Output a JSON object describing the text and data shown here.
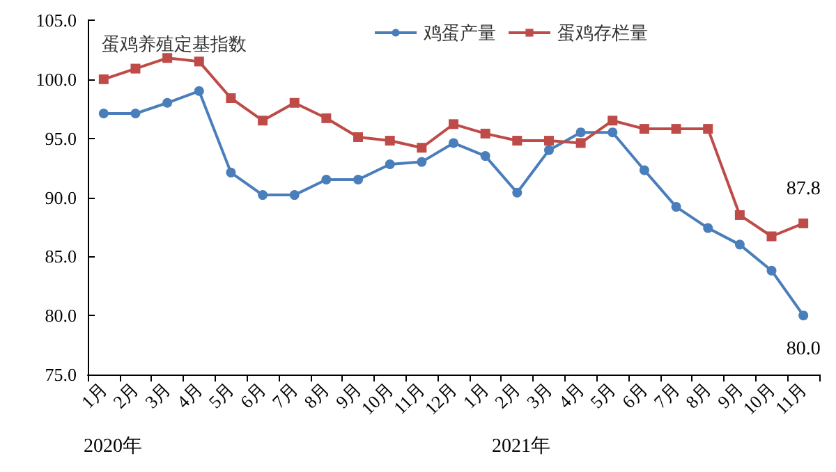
{
  "chart_data": {
    "type": "line",
    "title": "蛋鸡养殖定基指数",
    "categories": [
      "1月",
      "2月",
      "3月",
      "4月",
      "5月",
      "6月",
      "7月",
      "8月",
      "9月",
      "10月",
      "11月",
      "12月",
      "1月",
      "2月",
      "3月",
      "4月",
      "5月",
      "6月",
      "7月",
      "8月",
      "9月",
      "10月",
      "11月"
    ],
    "series": [
      {
        "name": "鸡蛋产量",
        "color": "#4a7ebb",
        "marker": "circle",
        "values": [
          97.1,
          97.1,
          98.0,
          99.0,
          92.1,
          90.2,
          90.2,
          91.5,
          91.5,
          92.8,
          93.0,
          94.6,
          93.5,
          90.4,
          94.0,
          95.5,
          95.5,
          92.3,
          89.2,
          87.4,
          86.0,
          83.8,
          80.0
        ],
        "value_labels": [
          null,
          null,
          null,
          null,
          null,
          null,
          null,
          null,
          null,
          null,
          null,
          null,
          null,
          null,
          null,
          null,
          null,
          null,
          null,
          null,
          null,
          null,
          "80.0"
        ]
      },
      {
        "name": "蛋鸡存栏量",
        "color": "#be4b48",
        "marker": "square",
        "values": [
          100.0,
          100.9,
          101.8,
          101.5,
          98.4,
          96.5,
          98.0,
          96.7,
          95.1,
          94.8,
          94.2,
          96.2,
          95.4,
          94.8,
          94.8,
          94.6,
          96.5,
          95.8,
          95.8,
          95.8,
          88.5,
          86.7,
          87.8
        ],
        "value_labels": [
          null,
          null,
          null,
          null,
          null,
          null,
          null,
          null,
          null,
          null,
          null,
          null,
          null,
          null,
          null,
          null,
          null,
          null,
          null,
          null,
          null,
          null,
          "87.8"
        ]
      }
    ],
    "ylim": [
      75,
      105
    ],
    "yticks": [
      {
        "value": 75,
        "label": "75.0"
      },
      {
        "value": 80,
        "label": "80.0"
      },
      {
        "value": 85,
        "label": "85.0"
      },
      {
        "value": 90,
        "label": "90.0"
      },
      {
        "value": 95,
        "label": "95.0"
      },
      {
        "value": 100,
        "label": "100.0"
      },
      {
        "value": 105,
        "label": "105.0"
      }
    ],
    "annotations": [
      "2020年",
      "2021年"
    ],
    "grid": false,
    "legend": "top",
    "line_style": "solid"
  }
}
